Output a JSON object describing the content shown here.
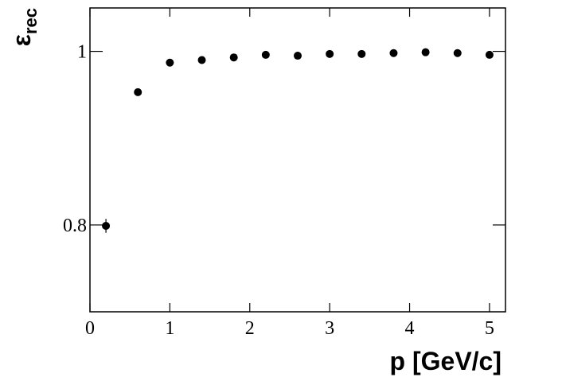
{
  "chart_data": {
    "type": "scatter",
    "xlabel": "p [GeV/c]",
    "ylabel": {
      "symbol": "ε",
      "subscript": "rec"
    },
    "x": [
      0.2,
      0.6,
      1.0,
      1.4,
      1.8,
      2.2,
      2.6,
      3.0,
      3.4,
      3.8,
      4.2,
      4.6,
      5.0
    ],
    "series": [
      {
        "color": "#000000",
        "values": [
          0.799,
          0.953,
          0.987,
          0.99,
          0.993,
          0.996,
          0.995,
          0.997,
          0.997,
          0.998,
          0.999,
          0.998,
          0.996
        ],
        "errors": [
          0.008,
          0.002,
          0.001,
          0.001,
          0.001,
          0.001,
          0.001,
          0.001,
          0.001,
          0.001,
          0.001,
          0.001,
          0.001
        ]
      }
    ],
    "xlim": [
      0,
      5.2
    ],
    "ylim": [
      0.7,
      1.05
    ],
    "xticks": [
      0,
      1,
      2,
      3,
      4,
      5
    ],
    "yticks": [
      0.8,
      1
    ],
    "grid": false
  }
}
